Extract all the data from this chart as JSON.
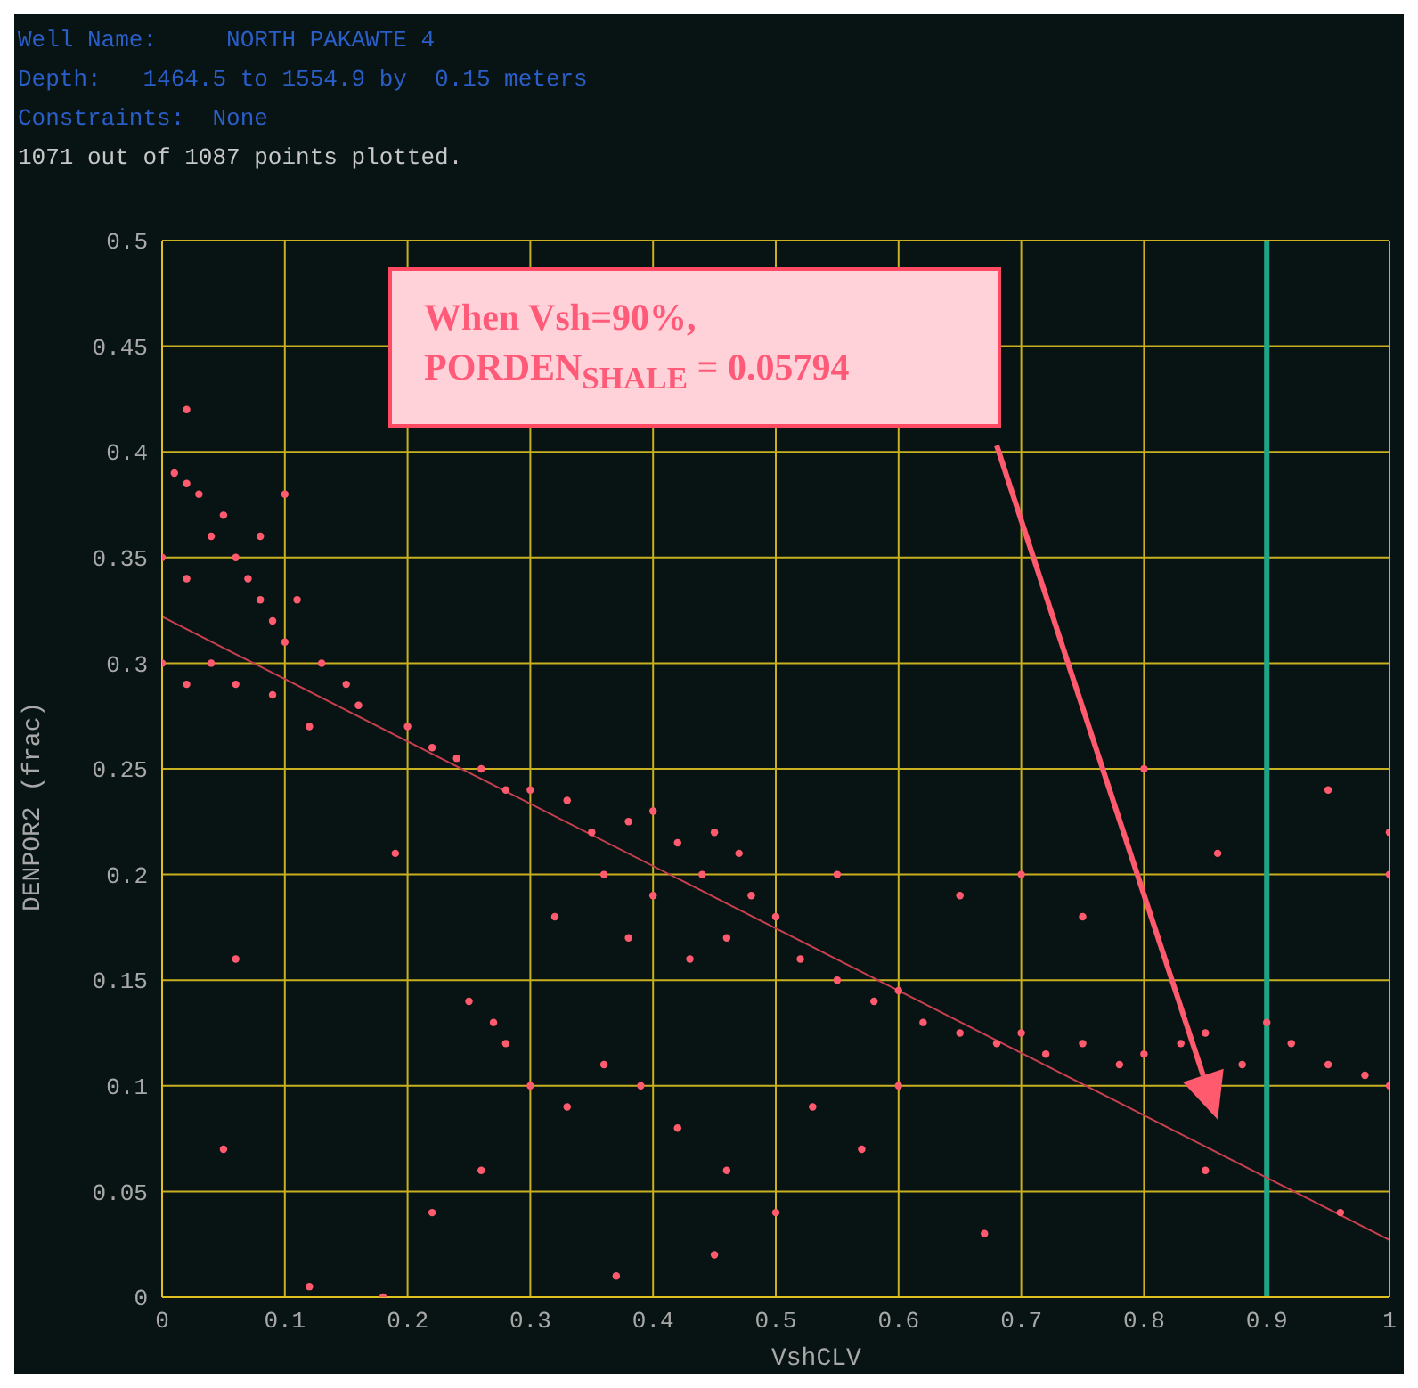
{
  "chart_data": {
    "type": "scatter",
    "title": "Well Name:     NORTH PAKAWTE 4",
    "subtitle": "Depth:   1464.5 to 1554.9 by  0.15 meters",
    "annotations": [
      "Constraints:  None",
      "1071 out of 1087 points plotted.",
      "When Vsh=90%,\nPORDEN$_{SHALE}$ = 0.05794"
    ],
    "xlabel": "VshCLV",
    "ylabel": "DENPOR2 (frac)",
    "xlim": [
      0,
      1
    ],
    "ylim": [
      0,
      0.5
    ],
    "xticks": [
      0,
      0.1,
      0.2,
      0.3,
      0.4,
      0.5,
      0.6,
      0.7,
      0.8,
      0.9,
      1
    ],
    "yticks": [
      0,
      0.05,
      0.1,
      0.15,
      0.2,
      0.25,
      0.3,
      0.35,
      0.4,
      0.45,
      0.5
    ],
    "grid": true,
    "ref_lines": [
      {
        "axis": "x",
        "value": 0.9,
        "color": "#1fa585"
      }
    ],
    "series": [
      {
        "marker": "circle",
        "color": "#ff5a6e",
        "x": [
          0.01,
          0.02,
          0.03,
          0.04,
          0.05,
          0.06,
          0.07,
          0.08,
          0.09,
          0.1,
          0.1,
          0.11,
          0.04,
          0.02,
          0.06,
          0.09,
          0.13,
          0.15,
          0.02,
          0.08,
          0.12,
          0.16,
          0.2,
          0.22,
          0.24,
          0.26,
          0.28,
          0.3,
          0.33,
          0.35,
          0.38,
          0.4,
          0.42,
          0.45,
          0.47,
          0.36,
          0.4,
          0.44,
          0.48,
          0.32,
          0.38,
          0.43,
          0.46,
          0.5,
          0.52,
          0.55,
          0.58,
          0.6,
          0.62,
          0.65,
          0.68,
          0.7,
          0.72,
          0.75,
          0.78,
          0.8,
          0.83,
          0.85,
          0.88,
          0.9,
          0.92,
          0.95,
          0.98,
          1.0,
          1.0,
          1.0,
          0.25,
          0.28,
          0.3,
          0.27,
          0.33,
          0.36,
          0.39,
          0.42,
          0.46,
          0.5,
          0.53,
          0.57,
          0.6,
          0.55,
          0.65,
          0.7,
          0.75,
          0.8,
          0.86,
          0.95,
          0.26,
          0.22,
          0.18,
          0.12,
          0.06,
          0.05,
          0.19,
          0.37,
          0.45,
          0.67,
          0.85,
          0.96,
          0.02,
          0.0,
          0.0
        ],
        "values": [
          0.39,
          0.385,
          0.38,
          0.36,
          0.37,
          0.35,
          0.34,
          0.33,
          0.32,
          0.31,
          0.38,
          0.33,
          0.3,
          0.29,
          0.29,
          0.285,
          0.3,
          0.29,
          0.34,
          0.36,
          0.27,
          0.28,
          0.27,
          0.26,
          0.255,
          0.25,
          0.24,
          0.24,
          0.235,
          0.22,
          0.225,
          0.23,
          0.215,
          0.22,
          0.21,
          0.2,
          0.19,
          0.2,
          0.19,
          0.18,
          0.17,
          0.16,
          0.17,
          0.18,
          0.16,
          0.15,
          0.14,
          0.145,
          0.13,
          0.125,
          0.12,
          0.125,
          0.115,
          0.12,
          0.11,
          0.115,
          0.12,
          0.125,
          0.11,
          0.13,
          0.12,
          0.11,
          0.105,
          0.1,
          0.22,
          0.2,
          0.14,
          0.12,
          0.1,
          0.13,
          0.09,
          0.11,
          0.1,
          0.08,
          0.06,
          0.04,
          0.09,
          0.07,
          0.1,
          0.2,
          0.19,
          0.2,
          0.18,
          0.25,
          0.21,
          0.24,
          0.06,
          0.04,
          0.0,
          0.005,
          0.16,
          0.07,
          0.21,
          0.01,
          0.02,
          0.03,
          0.06,
          0.04,
          0.42,
          0.3,
          0.35
        ]
      },
      {
        "type": "line",
        "color": "#c8404f",
        "x": [
          0,
          1
        ],
        "values": [
          0.322,
          0.027
        ]
      }
    ]
  }
}
